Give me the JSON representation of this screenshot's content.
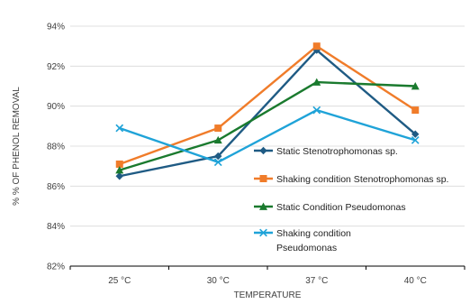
{
  "chart_data": {
    "type": "line",
    "title": "",
    "xlabel": "TEMPERATURE",
    "ylabel": "% % OF PHENOL REMOVAL",
    "categories": [
      "25 °C",
      "30 °C",
      "37 °C",
      "40 °C"
    ],
    "ylim": [
      82,
      94
    ],
    "yticks": [
      82,
      84,
      86,
      88,
      90,
      92,
      94
    ],
    "ytick_labels": [
      "82%",
      "84%",
      "86%",
      "88%",
      "90%",
      "92%",
      "94%"
    ],
    "grid": true,
    "legend_position": "right",
    "series": [
      {
        "name": "Static Stenotrophomonas sp.",
        "color": "#1f5b84",
        "marker": "diamond",
        "values": [
          86.5,
          87.5,
          92.8,
          88.6
        ]
      },
      {
        "name": "Shaking condition Stenotrophomonas sp.",
        "color": "#f07c2a",
        "marker": "square",
        "values": [
          87.1,
          88.9,
          93.0,
          89.8
        ]
      },
      {
        "name": "Static Condition Pseudomonas",
        "color": "#1a7a2e",
        "marker": "triangle",
        "values": [
          86.8,
          88.3,
          91.2,
          91.0
        ]
      },
      {
        "name": "Shaking condition Pseudomonas",
        "legend_lines": [
          "Shaking condition",
          "Pseudomonas"
        ],
        "color": "#1fa3d8",
        "marker": "x",
        "values": [
          88.9,
          87.2,
          89.8,
          88.3
        ]
      }
    ]
  }
}
